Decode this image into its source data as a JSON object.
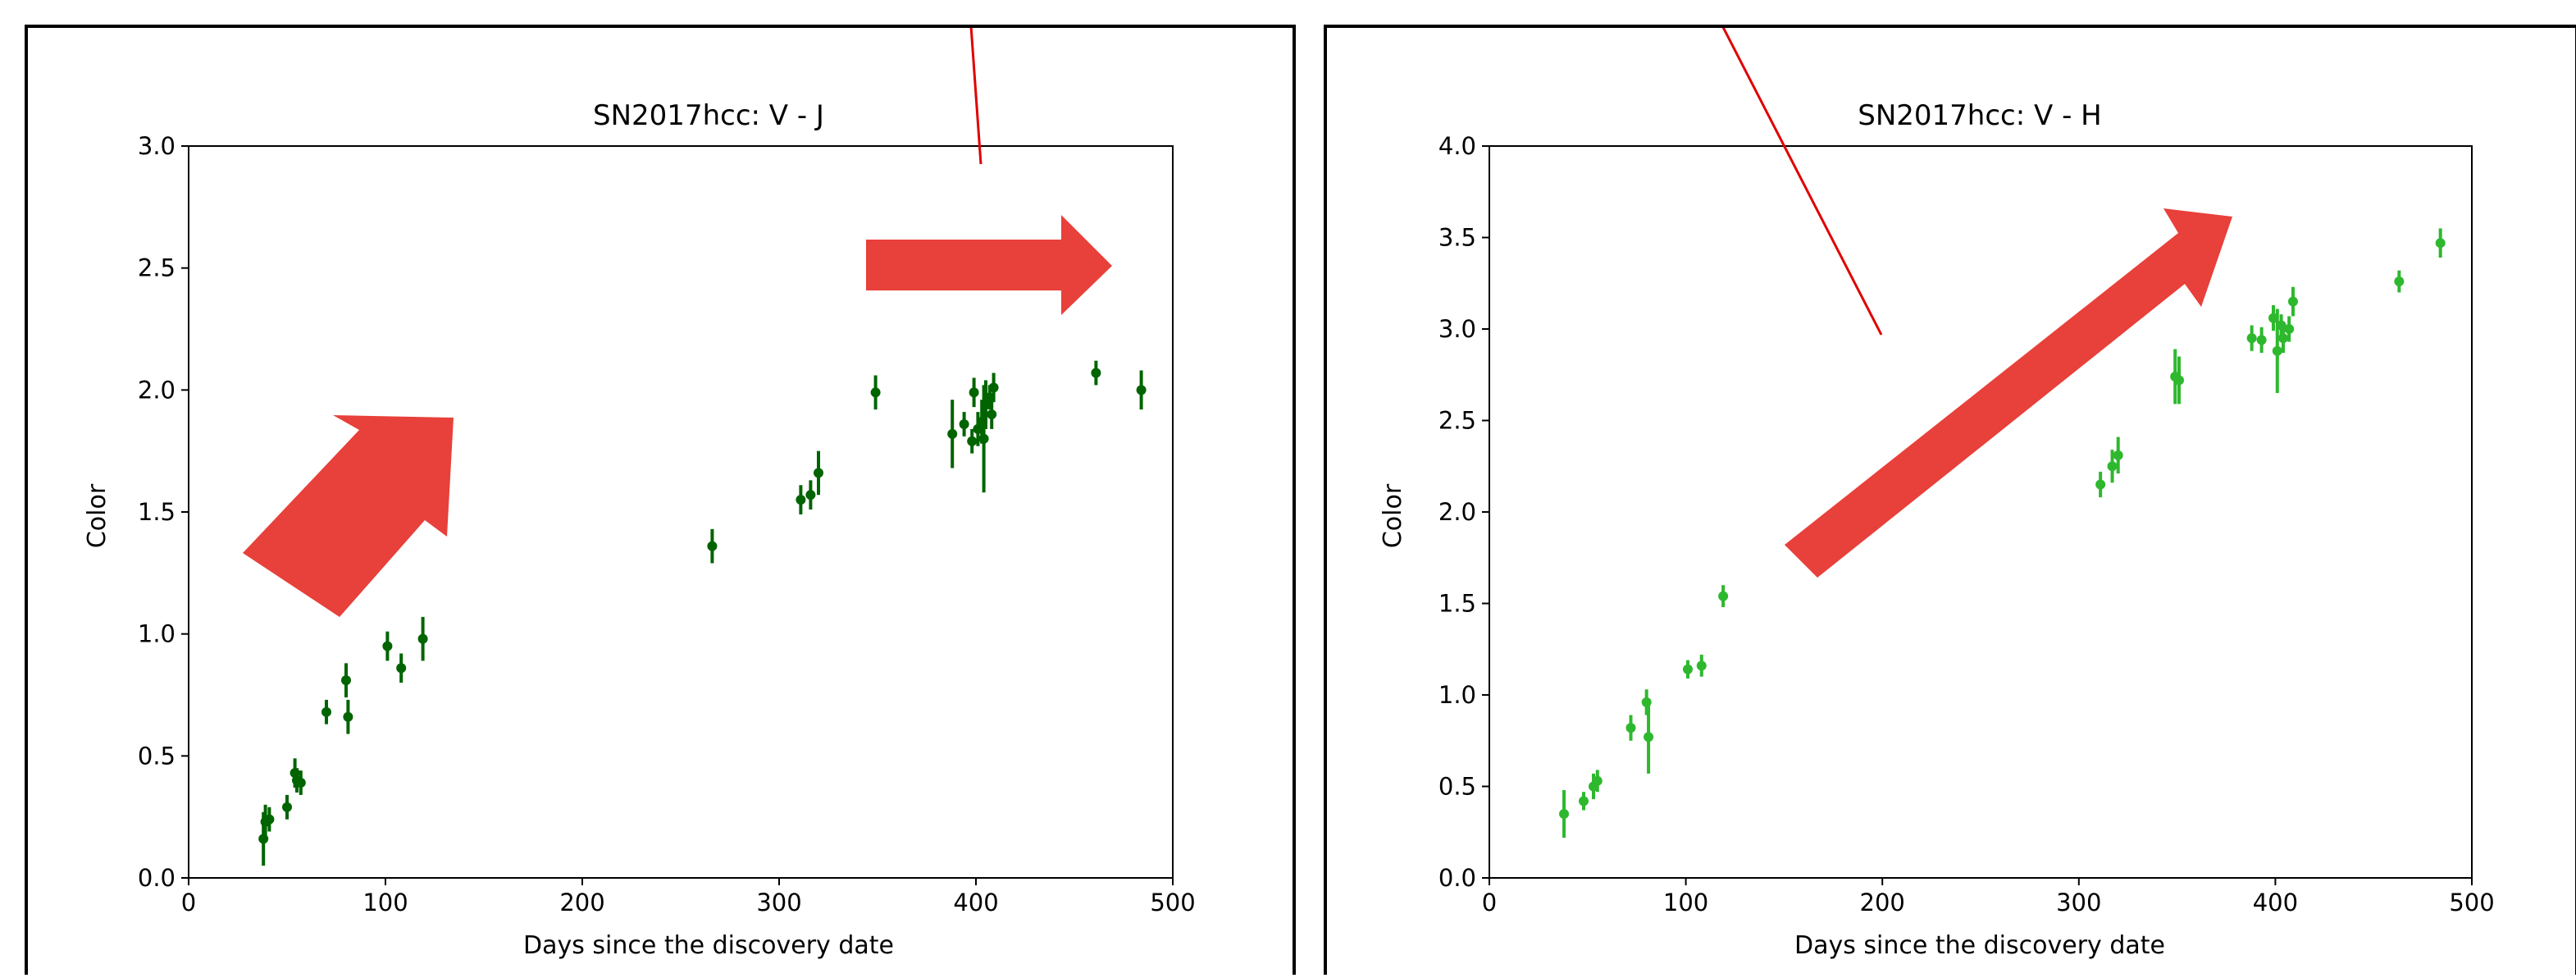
{
  "colors": {
    "left_series": "#006400",
    "right_series": "#2eb82e",
    "annotation_arrow": "#e8403a",
    "annotation_line": "#e00000"
  },
  "chart_data": [
    {
      "type": "scatter",
      "title": "SN2017hcc:  V - J",
      "xlabel": "Days since the discovery date",
      "ylabel": "Color",
      "xlim": [
        0,
        500
      ],
      "ylim": [
        0,
        3.0
      ],
      "xticks": [
        "0",
        "100",
        "200",
        "300",
        "400",
        "500"
      ],
      "yticks": [
        "0.0",
        "0.5",
        "1.0",
        "1.5",
        "2.0",
        "2.5",
        "3.0"
      ],
      "grid": false,
      "error_bars": true,
      "series": [
        {
          "points": [
            [
              38,
              0.16,
              0.11
            ],
            [
              39,
              0.23,
              0.07
            ],
            [
              41,
              0.24,
              0.05
            ],
            [
              50,
              0.29,
              0.05
            ],
            [
              54,
              0.43,
              0.06
            ],
            [
              55,
              0.4,
              0.05
            ],
            [
              57,
              0.39,
              0.05
            ],
            [
              70,
              0.68,
              0.05
            ],
            [
              80,
              0.81,
              0.07
            ],
            [
              81,
              0.66,
              0.07
            ],
            [
              101,
              0.95,
              0.06
            ],
            [
              108,
              0.86,
              0.06
            ],
            [
              119,
              0.98,
              0.09
            ],
            [
              266,
              1.36,
              0.07
            ],
            [
              311,
              1.55,
              0.06
            ],
            [
              316,
              1.57,
              0.06
            ],
            [
              320,
              1.66,
              0.09
            ],
            [
              349,
              1.99,
              0.07
            ],
            [
              388,
              1.82,
              0.14
            ],
            [
              394,
              1.86,
              0.05
            ],
            [
              398,
              1.79,
              0.05
            ],
            [
              399,
              1.99,
              0.06
            ],
            [
              401,
              1.84,
              0.07
            ],
            [
              403,
              1.87,
              0.09
            ],
            [
              404,
              1.8,
              0.22
            ],
            [
              405,
              1.94,
              0.1
            ],
            [
              407,
              1.97,
              0.05
            ],
            [
              408,
              1.9,
              0.06
            ],
            [
              409,
              2.01,
              0.06
            ],
            [
              461,
              2.07,
              0.05
            ],
            [
              484,
              2.0,
              0.08
            ]
          ]
        }
      ]
    },
    {
      "type": "scatter",
      "title": "SN2017hcc:  V - H",
      "xlabel": "Days since the discovery date",
      "ylabel": "Color",
      "xlim": [
        0,
        500
      ],
      "ylim": [
        0,
        4.0
      ],
      "xticks": [
        "0",
        "100",
        "200",
        "300",
        "400",
        "500"
      ],
      "yticks": [
        "0.0",
        "0.5",
        "1.0",
        "1.5",
        "2.0",
        "2.5",
        "3.0",
        "3.5",
        "4.0"
      ],
      "grid": false,
      "error_bars": true,
      "series": [
        {
          "points": [
            [
              38,
              0.35,
              0.13
            ],
            [
              48,
              0.42,
              0.05
            ],
            [
              53,
              0.5,
              0.07
            ],
            [
              55,
              0.53,
              0.06
            ],
            [
              72,
              0.82,
              0.07
            ],
            [
              80,
              0.96,
              0.07
            ],
            [
              81,
              0.77,
              0.2
            ],
            [
              101,
              1.14,
              0.05
            ],
            [
              108,
              1.16,
              0.06
            ],
            [
              119,
              1.54,
              0.06
            ],
            [
              311,
              2.15,
              0.07
            ],
            [
              317,
              2.25,
              0.09
            ],
            [
              320,
              2.31,
              0.1
            ],
            [
              349,
              2.74,
              0.15
            ],
            [
              351,
              2.72,
              0.13
            ],
            [
              388,
              2.95,
              0.07
            ],
            [
              393,
              2.94,
              0.07
            ],
            [
              399,
              3.06,
              0.07
            ],
            [
              401,
              2.88,
              0.23
            ],
            [
              403,
              3.02,
              0.06
            ],
            [
              404,
              2.95,
              0.08
            ],
            [
              407,
              3.0,
              0.07
            ],
            [
              409,
              3.15,
              0.08
            ],
            [
              463,
              3.26,
              0.06
            ],
            [
              484,
              3.47,
              0.08
            ]
          ]
        }
      ]
    }
  ]
}
